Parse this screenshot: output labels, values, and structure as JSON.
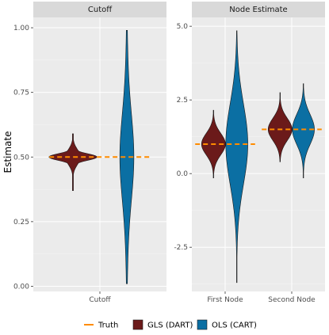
{
  "chart_data": [
    {
      "type": "violin",
      "panel_title": "Cutoff",
      "categories": [
        "Cutoff"
      ],
      "ylabel": "Estimate",
      "ylim": [
        -0.02,
        1.04
      ],
      "yticks": [
        0.0,
        0.25,
        0.5,
        0.75,
        1.0
      ],
      "ytick_labels": [
        "0.00",
        "0.25",
        "0.50",
        "0.75",
        "1.00"
      ],
      "truth": [
        {
          "category": "Cutoff",
          "value": 0.5
        }
      ],
      "series": [
        {
          "name": "GLS (DART)",
          "category": "Cutoff",
          "min": 0.37,
          "max": 0.59,
          "median": 0.5
        },
        {
          "name": "OLS (CART)",
          "category": "Cutoff",
          "min": 0.01,
          "max": 0.99,
          "median": 0.5
        }
      ]
    },
    {
      "type": "violin",
      "panel_title": "Node Estimate",
      "categories": [
        "First Node",
        "Second Node"
      ],
      "ylim": [
        -4.0,
        5.3
      ],
      "yticks": [
        -2.5,
        0.0,
        2.5,
        5.0
      ],
      "ytick_labels": [
        "-2.5",
        "0.0",
        "2.5",
        "5.0"
      ],
      "truth": [
        {
          "category": "First Node",
          "value": 1.0
        },
        {
          "category": "Second Node",
          "value": 1.5
        }
      ],
      "series": [
        {
          "name": "GLS (DART)",
          "category": "First Node",
          "min": -0.15,
          "max": 2.15,
          "median": 1.0
        },
        {
          "name": "OLS (CART)",
          "category": "First Node",
          "min": -3.7,
          "max": 4.85,
          "median": 1.0
        },
        {
          "name": "GLS (DART)",
          "category": "Second Node",
          "min": 0.4,
          "max": 2.75,
          "median": 1.5
        },
        {
          "name": "OLS (CART)",
          "category": "Second Node",
          "min": -0.15,
          "max": 3.05,
          "median": 1.5
        }
      ]
    }
  ],
  "legend": {
    "placement": "bottom",
    "items": [
      {
        "label": "Truth",
        "kind": "dash",
        "color": "#ff8c00"
      },
      {
        "label": "GLS (DART)",
        "kind": "fill",
        "color": "#6b1a1a"
      },
      {
        "label": "OLS (CART)",
        "kind": "fill",
        "color": "#0b6fa3"
      }
    ]
  },
  "colors": {
    "gls": "#6b1a1a",
    "ols": "#0b6fa3",
    "truth": "#ff8c00",
    "panel_bg": "#ebebeb",
    "strip_bg": "#d9d9d9",
    "grid_major": "#ffffff"
  }
}
